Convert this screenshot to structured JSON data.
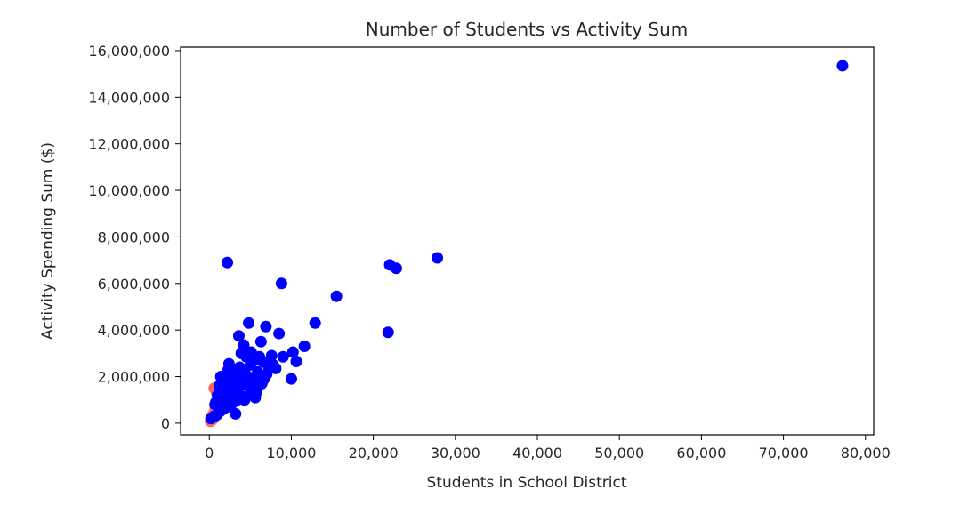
{
  "chart_data": {
    "type": "scatter",
    "title": "Number of Students vs Activity Sum",
    "xlabel": "Students in School District",
    "ylabel": "Activity Spending Sum ($)",
    "xlim": [
      -3500,
      81000
    ],
    "ylim": [
      -500000,
      16150000
    ],
    "xticks": [
      0,
      10000,
      20000,
      30000,
      40000,
      50000,
      60000,
      70000,
      80000
    ],
    "xtick_labels": [
      "0",
      "10,000",
      "20,000",
      "30,000",
      "40,000",
      "50,000",
      "60,000",
      "70,000",
      "80,000"
    ],
    "yticks": [
      0,
      2000000,
      4000000,
      6000000,
      8000000,
      10000000,
      12000000,
      14000000,
      16000000
    ],
    "ytick_labels": [
      "0",
      "2,000,000",
      "4,000,000",
      "6,000,000",
      "8,000,000",
      "10,000,000",
      "12,000,000",
      "14,000,000",
      "16,000,000"
    ],
    "grid": false,
    "legend": "none",
    "series": [
      {
        "color": "#ff6666",
        "points": [
          [
            150,
            80000
          ],
          [
            300,
            120000
          ],
          [
            500,
            200000
          ],
          [
            400,
            350000
          ],
          [
            700,
            600000
          ],
          [
            900,
            1300000
          ],
          [
            600,
            1500000
          ],
          [
            1200,
            900000
          ],
          [
            250,
            150000
          ],
          [
            800,
            450000
          ]
        ]
      },
      {
        "color": "#0000ff",
        "points": [
          [
            77200,
            15350000
          ],
          [
            27800,
            7100000
          ],
          [
            22000,
            6800000
          ],
          [
            22800,
            6650000
          ],
          [
            21800,
            3900000
          ],
          [
            2200,
            6900000
          ],
          [
            8800,
            6000000
          ],
          [
            15500,
            5450000
          ],
          [
            12900,
            4300000
          ],
          [
            4800,
            4300000
          ],
          [
            6900,
            4150000
          ],
          [
            3600,
            3750000
          ],
          [
            8500,
            3850000
          ],
          [
            6300,
            3500000
          ],
          [
            11600,
            3300000
          ],
          [
            4200,
            3350000
          ],
          [
            5100,
            3050000
          ],
          [
            10200,
            3050000
          ],
          [
            10600,
            2650000
          ],
          [
            7600,
            2900000
          ],
          [
            7200,
            2450000
          ],
          [
            9000,
            2850000
          ],
          [
            6100,
            2850000
          ],
          [
            5500,
            2700000
          ],
          [
            3900,
            3000000
          ],
          [
            8100,
            2350000
          ],
          [
            10000,
            1900000
          ],
          [
            6500,
            2650000
          ],
          [
            5000,
            2500000
          ],
          [
            4500,
            2850000
          ],
          [
            3000,
            2200000
          ],
          [
            2400,
            2550000
          ],
          [
            1400,
            2000000
          ],
          [
            2900,
            1500000
          ],
          [
            3500,
            1800000
          ],
          [
            4700,
            2000000
          ],
          [
            5300,
            1900000
          ],
          [
            6000,
            1600000
          ],
          [
            6400,
            1700000
          ],
          [
            7000,
            2100000
          ],
          [
            4100,
            1650000
          ],
          [
            3300,
            1950000
          ],
          [
            2700,
            1800000
          ],
          [
            2000,
            1600000
          ],
          [
            1600,
            1400000
          ],
          [
            1000,
            1200000
          ],
          [
            800,
            900000
          ],
          [
            1800,
            1100000
          ],
          [
            2500,
            1300000
          ],
          [
            3100,
            1400000
          ],
          [
            3800,
            1200000
          ],
          [
            4300,
            1000000
          ],
          [
            5200,
            1500000
          ],
          [
            5700,
            1300000
          ],
          [
            6700,
            1900000
          ],
          [
            7800,
            2500000
          ],
          [
            3200,
            400000
          ],
          [
            2200,
            700000
          ],
          [
            1700,
            600000
          ],
          [
            1300,
            500000
          ],
          [
            900,
            350000
          ],
          [
            600,
            300000
          ],
          [
            400,
            250000
          ],
          [
            200,
            200000
          ],
          [
            1100,
            750000
          ],
          [
            2600,
            1050000
          ],
          [
            4900,
            1250000
          ],
          [
            5900,
            2200000
          ],
          [
            3700,
            2400000
          ],
          [
            4400,
            2100000
          ],
          [
            2300,
            2300000
          ],
          [
            1900,
            2050000
          ],
          [
            3400,
            1000000
          ],
          [
            2800,
            850000
          ],
          [
            1500,
            950000
          ],
          [
            700,
            800000
          ],
          [
            1200,
            1600000
          ],
          [
            2100,
            1950000
          ],
          [
            4600,
            1700000
          ],
          [
            5600,
            1100000
          ]
        ]
      }
    ]
  }
}
